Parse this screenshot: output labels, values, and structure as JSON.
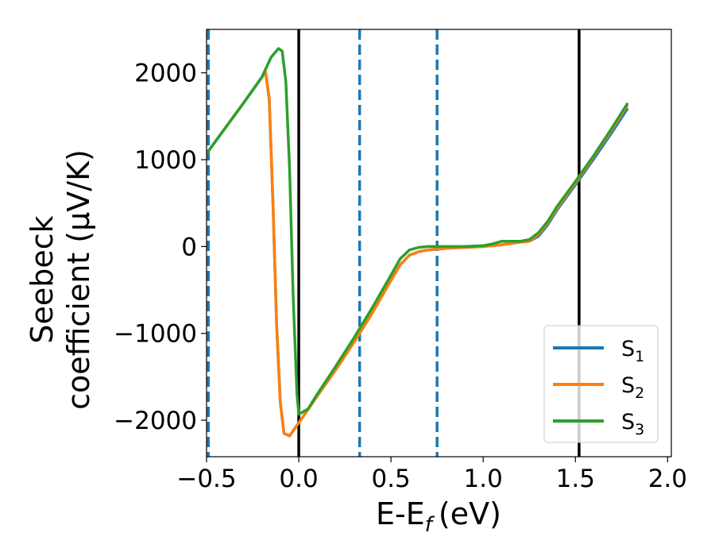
{
  "chart_data": {
    "type": "line",
    "xlabel": "E-E",
    "xlabel_sub": "f",
    "xlabel_unit": "(eV)",
    "ylabel_line1": "Seebeck",
    "ylabel_line2": "coefficient  (μV/K)",
    "xlim": [
      -0.5,
      2.02
    ],
    "ylim": [
      -2420,
      2500
    ],
    "x_ticks": [
      -0.5,
      0.0,
      0.5,
      1.0,
      1.5,
      2.0
    ],
    "x_tick_labels": [
      "−0.5",
      "0.0",
      "0.5",
      "1.0",
      "1.5",
      "2.0"
    ],
    "y_ticks": [
      -2000,
      -1000,
      0,
      1000,
      2000
    ],
    "y_tick_labels": [
      "−2000",
      "−1000",
      "0",
      "1000",
      "2000"
    ],
    "grid": false,
    "legend_position": "bottom-right",
    "vlines_dashed": [
      -0.49,
      0.33,
      0.75
    ],
    "vlines_solid": [
      0.0,
      1.52
    ],
    "colors": {
      "dashed": "#1f77b4",
      "solid": "#000000"
    },
    "series": [
      {
        "name": "S",
        "sub": "1",
        "color": "#1f77b4",
        "x": [
          -0.5,
          -0.3,
          -0.18,
          -0.16,
          -0.14,
          -0.12,
          -0.1,
          -0.08,
          -0.05,
          0.0,
          0.1,
          0.2,
          0.3,
          0.4,
          0.5,
          0.55,
          0.6,
          0.65,
          0.7,
          0.8,
          0.9,
          1.0,
          1.1,
          1.2,
          1.25,
          1.3,
          1.35,
          1.4,
          1.5,
          1.6,
          1.7,
          1.78
        ],
        "y": [
          1070,
          1650,
          2010,
          1700,
          500,
          -900,
          -1800,
          -2150,
          -2180,
          -2030,
          -1720,
          -1420,
          -1100,
          -760,
          -390,
          -210,
          -100,
          -60,
          -40,
          -20,
          -10,
          0,
          20,
          50,
          60,
          120,
          250,
          420,
          710,
          1010,
          1320,
          1580
        ]
      },
      {
        "name": "S",
        "sub": "2",
        "color": "#ff7f0e",
        "x": [
          -0.5,
          -0.3,
          -0.18,
          -0.16,
          -0.14,
          -0.12,
          -0.1,
          -0.08,
          -0.05,
          0.0,
          0.1,
          0.2,
          0.3,
          0.4,
          0.5,
          0.55,
          0.6,
          0.65,
          0.7,
          0.8,
          0.9,
          1.0,
          1.1,
          1.2,
          1.25,
          1.3,
          1.35,
          1.4,
          1.5,
          1.6,
          1.7,
          1.78
        ],
        "y": [
          1070,
          1650,
          2010,
          1700,
          500,
          -900,
          -1800,
          -2150,
          -2180,
          -2030,
          -1720,
          -1420,
          -1100,
          -760,
          -390,
          -210,
          -100,
          -60,
          -40,
          -20,
          -10,
          0,
          20,
          50,
          60,
          140,
          270,
          440,
          730,
          1040,
          1350,
          1620
        ]
      },
      {
        "name": "S",
        "sub": "3",
        "color": "#2ca02c",
        "x": [
          -0.5,
          -0.3,
          -0.2,
          -0.15,
          -0.11,
          -0.09,
          -0.07,
          -0.05,
          -0.03,
          -0.01,
          0.0,
          0.05,
          0.1,
          0.2,
          0.3,
          0.4,
          0.5,
          0.55,
          0.6,
          0.65,
          0.7,
          0.8,
          0.9,
          1.0,
          1.05,
          1.1,
          1.15,
          1.2,
          1.25,
          1.3,
          1.35,
          1.4,
          1.5,
          1.6,
          1.7,
          1.78
        ],
        "y": [
          1070,
          1650,
          1950,
          2180,
          2280,
          2250,
          1900,
          900,
          -600,
          -1700,
          -1930,
          -1870,
          -1700,
          -1380,
          -1050,
          -700,
          -330,
          -140,
          -40,
          -10,
          0,
          0,
          0,
          10,
          30,
          60,
          60,
          60,
          80,
          160,
          290,
          460,
          750,
          1050,
          1370,
          1640
        ]
      }
    ]
  }
}
